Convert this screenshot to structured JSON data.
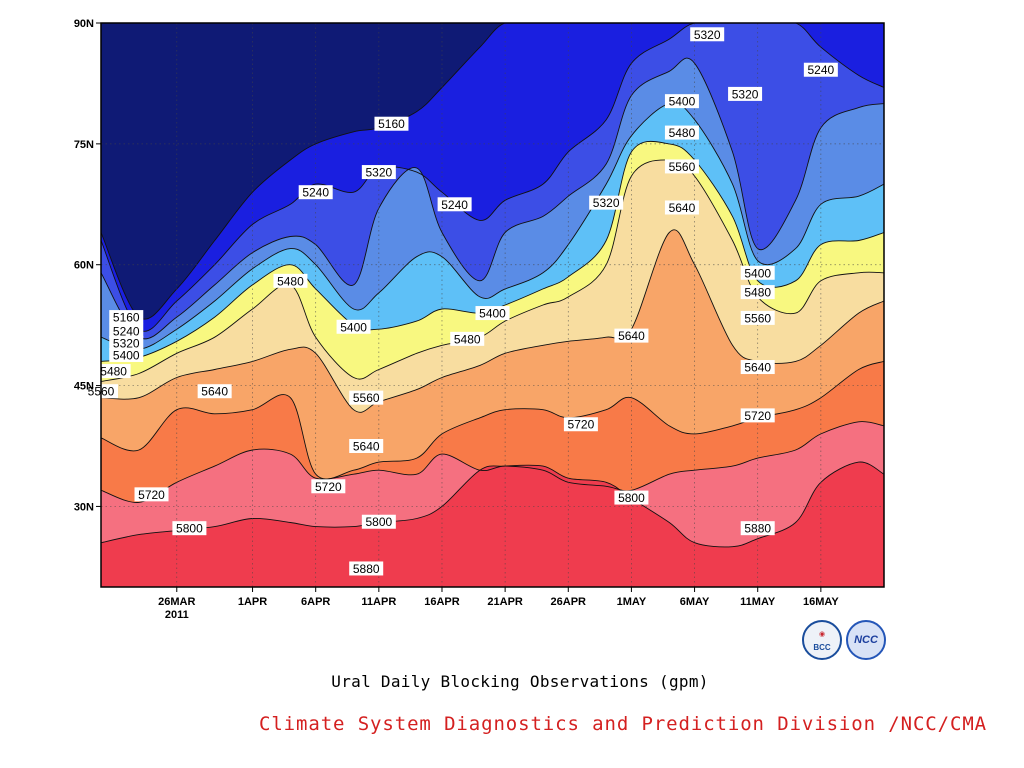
{
  "figure": {
    "caption": "Ural Daily Blocking Observations (gpm)",
    "credit": "Climate System Diagnostics and Prediction Division /NCC/CMA",
    "logos": [
      {
        "name": "bcc-logo",
        "text": "BCC"
      },
      {
        "name": "ncc-logo",
        "text": "NCC"
      }
    ]
  },
  "chart_data": {
    "type": "heatmap",
    "subtype": "filled-contour",
    "title": "",
    "xlabel": "",
    "ylabel": "",
    "x_range": [
      "2011-03-20",
      "2011-05-21"
    ],
    "y_range": [
      20,
      90
    ],
    "x_ticks": [
      {
        "date": "2011-03-26",
        "label": "26MAR",
        "sublabel": "2011"
      },
      {
        "date": "2011-04-01",
        "label": "1APR"
      },
      {
        "date": "2011-04-06",
        "label": "6APR"
      },
      {
        "date": "2011-04-11",
        "label": "11APR"
      },
      {
        "date": "2011-04-16",
        "label": "16APR"
      },
      {
        "date": "2011-04-21",
        "label": "21APR"
      },
      {
        "date": "2011-04-26",
        "label": "26APR"
      },
      {
        "date": "2011-05-01",
        "label": "1MAY"
      },
      {
        "date": "2011-05-06",
        "label": "6MAY"
      },
      {
        "date": "2011-05-11",
        "label": "11MAY"
      },
      {
        "date": "2011-05-16",
        "label": "16MAY"
      }
    ],
    "y_ticks": [
      {
        "value": 30,
        "label": "30N"
      },
      {
        "value": 45,
        "label": "45N"
      },
      {
        "value": 60,
        "label": "60N"
      },
      {
        "value": 75,
        "label": "75N"
      },
      {
        "value": 90,
        "label": "90N"
      }
    ],
    "grid": true,
    "contour_levels": [
      5160,
      5240,
      5320,
      5400,
      5480,
      5560,
      5640,
      5720,
      5800,
      5880
    ],
    "fill_colors": [
      "#0f1a75",
      "#1a1fe0",
      "#3c4ee6",
      "#5a8ce6",
      "#5ec0f7",
      "#f8f880",
      "#f8dda0",
      "#f8a568",
      "#f87a48",
      "#f57080",
      "#ef3c4e"
    ],
    "x_dates": [
      "2011-03-20",
      "2011-03-23",
      "2011-03-26",
      "2011-03-29",
      "2011-04-01",
      "2011-04-04",
      "2011-04-06",
      "2011-04-09",
      "2011-04-11",
      "2011-04-14",
      "2011-04-16",
      "2011-04-19",
      "2011-04-21",
      "2011-04-24",
      "2011-04-26",
      "2011-04-29",
      "2011-05-01",
      "2011-05-04",
      "2011-05-06",
      "2011-05-09",
      "2011-05-11",
      "2011-05-14",
      "2011-05-16",
      "2011-05-19",
      "2011-05-21"
    ],
    "series": [
      {
        "level": 5160,
        "lat": [
          64,
          53.5,
          57,
          63,
          69,
          73,
          75,
          76.5,
          77,
          79,
          82,
          87,
          90,
          90,
          90,
          90,
          90,
          90,
          90,
          90,
          90,
          90,
          90,
          90,
          90
        ]
      },
      {
        "level": 5240,
        "lat": [
          63,
          52,
          55.5,
          60,
          65,
          67.5,
          70,
          69,
          72,
          71.5,
          69,
          65.5,
          68,
          70,
          74,
          78,
          85,
          88,
          90,
          90,
          90,
          90,
          87,
          83.5,
          82
        ]
      },
      {
        "level": 5320,
        "lat": [
          59,
          51,
          53.5,
          57.5,
          61.5,
          63.5,
          62.5,
          57.5,
          67,
          72,
          64,
          58,
          64,
          66,
          68.5,
          72.5,
          81,
          84,
          85,
          74,
          62,
          68,
          77,
          79.5,
          80
        ]
      },
      {
        "level": 5400,
        "lat": [
          51,
          49.5,
          52,
          55.5,
          59.5,
          62,
          60,
          54.5,
          56.5,
          61,
          61,
          56,
          57,
          59,
          62.5,
          70,
          76,
          80,
          78,
          70,
          60.5,
          62,
          67.5,
          68.5,
          70
        ]
      },
      {
        "level": 5480,
        "lat": [
          48,
          48.5,
          50.5,
          53.5,
          57.5,
          60,
          57,
          52.5,
          52,
          53,
          54.5,
          54,
          55,
          57,
          58.5,
          63,
          74,
          75,
          73,
          66,
          58,
          58,
          62.5,
          63,
          64
        ]
      },
      {
        "level": 5560,
        "lat": [
          45.5,
          46.5,
          49,
          51,
          54.5,
          57.5,
          51,
          46,
          47,
          49,
          50,
          51,
          53,
          55,
          56,
          60,
          71,
          73,
          71,
          63,
          56,
          54,
          58,
          59,
          59
        ]
      },
      {
        "level": 5640,
        "lat": [
          43.5,
          43.5,
          46,
          47,
          48,
          49.5,
          49,
          42,
          43,
          44.5,
          46,
          47.5,
          49,
          50,
          50.5,
          51,
          52,
          64,
          60,
          50,
          48,
          48,
          50,
          54,
          55.5
        ]
      },
      {
        "level": 5720,
        "lat": [
          38.5,
          37,
          42,
          41.5,
          42,
          43.5,
          34,
          34.5,
          35.5,
          36,
          39,
          41,
          42,
          42,
          41,
          42,
          43.5,
          40,
          39,
          40,
          41,
          42,
          43.5,
          47,
          48
        ]
      },
      {
        "level": 5800,
        "lat": [
          32,
          30.5,
          33,
          35,
          37,
          36.5,
          33.5,
          34,
          34.5,
          34,
          36.5,
          34.5,
          35,
          34.5,
          33,
          32.5,
          32,
          34,
          34.5,
          35,
          36,
          37,
          39,
          40.5,
          40
        ]
      },
      {
        "level": 5880,
        "lat": [
          25.5,
          26.5,
          27,
          27.5,
          28.5,
          28,
          27.5,
          27.5,
          28,
          28.5,
          30,
          34.5,
          35,
          35,
          33.5,
          33,
          31,
          28,
          25.5,
          25,
          26,
          28,
          33,
          35.5,
          34
        ]
      }
    ],
    "contour_labels": [
      {
        "level": 5160,
        "text": "5160",
        "date": "2011-03-22",
        "lat": 53.5
      },
      {
        "level": 5240,
        "text": "5240",
        "date": "2011-03-22",
        "lat": 51.8
      },
      {
        "level": 5320,
        "text": "5320",
        "date": "2011-03-22",
        "lat": 50.3
      },
      {
        "level": 5400,
        "text": "5400",
        "date": "2011-03-22",
        "lat": 48.8
      },
      {
        "level": 5480,
        "text": "5480",
        "date": "2011-03-21",
        "lat": 46.8
      },
      {
        "level": 5560,
        "text": "5560",
        "date": "2011-03-20",
        "lat": 44.3
      },
      {
        "level": 5640,
        "text": "5640",
        "date": "2011-03-29",
        "lat": 44.3
      },
      {
        "level": 5720,
        "text": "5720",
        "date": "2011-03-24",
        "lat": 31.5
      },
      {
        "level": 5800,
        "text": "5800",
        "date": "2011-03-27",
        "lat": 27.3
      },
      {
        "level": 5480,
        "text": "5480",
        "date": "2011-04-04",
        "lat": 58
      },
      {
        "level": 5240,
        "text": "5240",
        "date": "2011-04-06",
        "lat": 69
      },
      {
        "level": 5400,
        "text": "5400",
        "date": "2011-04-09",
        "lat": 52.3
      },
      {
        "level": 5560,
        "text": "5560",
        "date": "2011-04-10",
        "lat": 43.5
      },
      {
        "level": 5640,
        "text": "5640",
        "date": "2011-04-10",
        "lat": 37.5
      },
      {
        "level": 5720,
        "text": "5720",
        "date": "2011-04-07",
        "lat": 32.5
      },
      {
        "level": 5800,
        "text": "5800",
        "date": "2011-04-11",
        "lat": 28.1
      },
      {
        "level": 5880,
        "text": "5880",
        "date": "2011-04-10",
        "lat": 22.3
      },
      {
        "level": 5160,
        "text": "5160",
        "date": "2011-04-12",
        "lat": 77.5
      },
      {
        "level": 5320,
        "text": "5320",
        "date": "2011-04-11",
        "lat": 71.5
      },
      {
        "level": 5240,
        "text": "5240",
        "date": "2011-04-17",
        "lat": 67.5
      },
      {
        "level": 5480,
        "text": "5480",
        "date": "2011-04-18",
        "lat": 50.8
      },
      {
        "level": 5400,
        "text": "5400",
        "date": "2011-04-20",
        "lat": 54
      },
      {
        "level": 5320,
        "text": "5320",
        "date": "2011-04-29",
        "lat": 67.7
      },
      {
        "level": 5720,
        "text": "5720",
        "date": "2011-04-27",
        "lat": 40.2
      },
      {
        "level": 5640,
        "text": "5640",
        "date": "2011-05-01",
        "lat": 51.2
      },
      {
        "level": 5800,
        "text": "5800",
        "date": "2011-05-01",
        "lat": 31.1
      },
      {
        "level": 5400,
        "text": "5400",
        "date": "2011-05-05",
        "lat": 80.3
      },
      {
        "level": 5480,
        "text": "5480",
        "date": "2011-05-05",
        "lat": 76.4
      },
      {
        "level": 5560,
        "text": "5560",
        "date": "2011-05-05",
        "lat": 72.2
      },
      {
        "level": 5640,
        "text": "5640",
        "date": "2011-05-05",
        "lat": 67.1
      },
      {
        "level": 5320,
        "text": "5320",
        "date": "2011-05-07",
        "lat": 88.6
      },
      {
        "level": 5320,
        "text": "5320",
        "date": "2011-05-10",
        "lat": 81.2
      },
      {
        "level": 5240,
        "text": "5240",
        "date": "2011-05-16",
        "lat": 84.2
      },
      {
        "level": 5400,
        "text": "5400",
        "date": "2011-05-11",
        "lat": 59
      },
      {
        "level": 5480,
        "text": "5480",
        "date": "2011-05-11",
        "lat": 56.6
      },
      {
        "level": 5560,
        "text": "5560",
        "date": "2011-05-11",
        "lat": 53.4
      },
      {
        "level": 5640,
        "text": "5640",
        "date": "2011-05-11",
        "lat": 47.3
      },
      {
        "level": 5720,
        "text": "5720",
        "date": "2011-05-11",
        "lat": 41.3
      },
      {
        "level": 5880,
        "text": "5880",
        "date": "2011-05-11",
        "lat": 27.3
      }
    ]
  }
}
